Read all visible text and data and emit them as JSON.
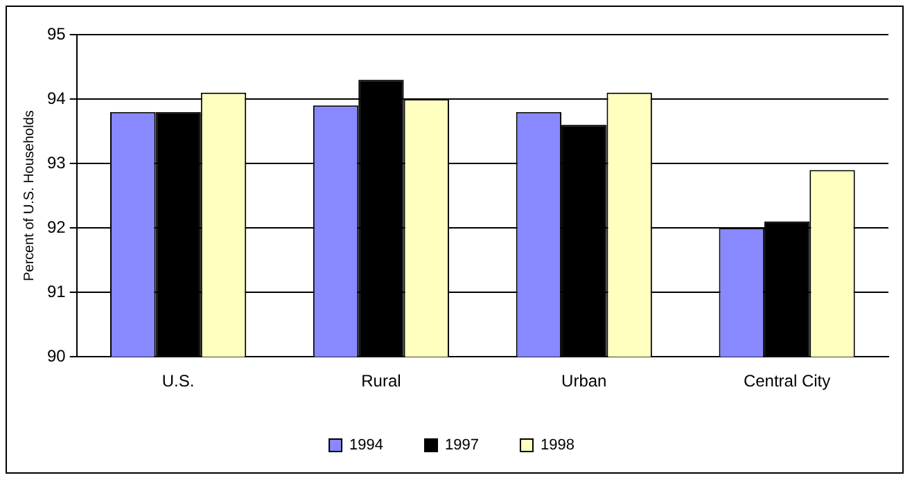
{
  "chart_data": {
    "type": "bar",
    "ylabel": "Percent of U.S. Households",
    "categories": [
      "U.S.",
      "Rural",
      "Urban",
      "Central City"
    ],
    "series": [
      {
        "name": "1994",
        "color": "#8888ff",
        "values": [
          93.8,
          93.9,
          93.8,
          92.0
        ]
      },
      {
        "name": "1997",
        "color": "#000000",
        "values": [
          93.8,
          94.3,
          93.6,
          92.1
        ]
      },
      {
        "name": "1998",
        "color": "#ffffc0",
        "values": [
          94.1,
          94.0,
          94.1,
          92.9
        ]
      }
    ],
    "ylim": [
      90,
      95
    ],
    "yticks": [
      90,
      91,
      92,
      93,
      94,
      95
    ],
    "grid": "y",
    "legend": "bottom"
  }
}
